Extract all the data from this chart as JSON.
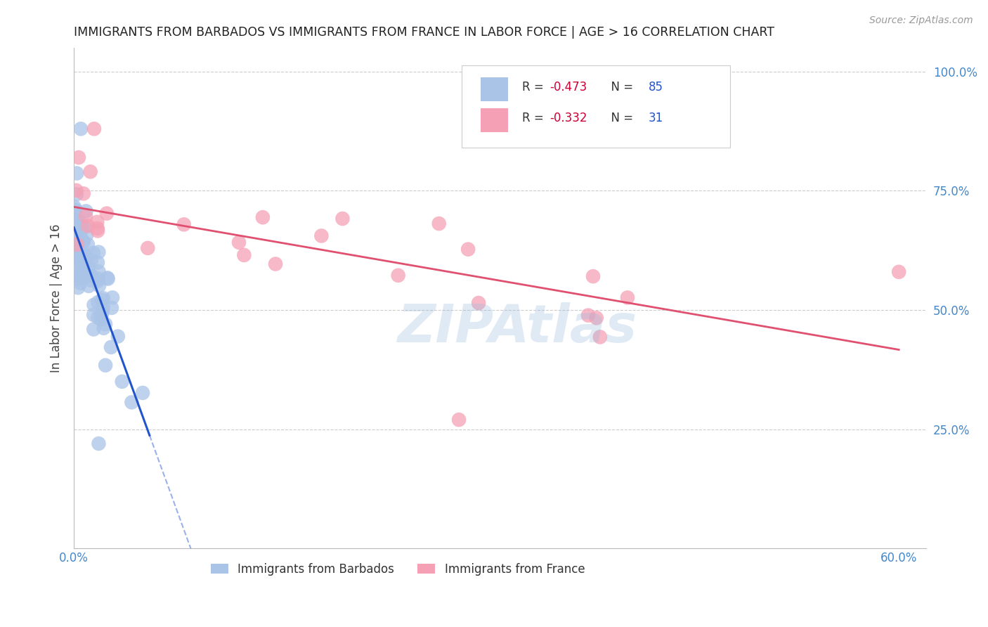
{
  "title": "IMMIGRANTS FROM BARBADOS VS IMMIGRANTS FROM FRANCE IN LABOR FORCE | AGE > 16 CORRELATION CHART",
  "source": "Source: ZipAtlas.com",
  "ylabel_left": "In Labor Force | Age > 16",
  "xlim": [
    0.0,
    0.62
  ],
  "ylim": [
    0.0,
    1.05
  ],
  "background_color": "#ffffff",
  "barbados_color": "#aac4e8",
  "france_color": "#f5a0b5",
  "barbados_R": -0.473,
  "barbados_N": 85,
  "france_R": -0.332,
  "france_N": 31,
  "barbados_line_color": "#2255cc",
  "france_line_color": "#e05070",
  "watermark": "ZIPAtlas",
  "axis_label_color": "#4488cc",
  "title_color": "#222222",
  "source_color": "#999999",
  "ylabel_color": "#444444",
  "stats_text_color": "#cc0033",
  "stats_N_color": "#2255cc",
  "stats_border_color": "#cccccc"
}
